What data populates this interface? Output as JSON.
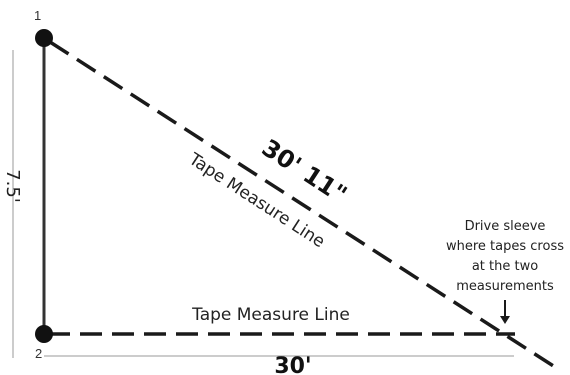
{
  "points": {
    "top": "1",
    "bottom": "2"
  },
  "dimensions": {
    "vertical": "7.5'",
    "horizontal": "30'",
    "diagonal": "30' 11\""
  },
  "tapes": {
    "diagonal_label": "Tape Measure Line",
    "horizontal_label": "Tape Measure Line"
  },
  "note": {
    "lines": [
      "Drive sleeve",
      "where tapes cross",
      "at the two",
      "measurements"
    ]
  },
  "colors": {
    "line": "#1a1a1a",
    "guide": "#999999"
  }
}
